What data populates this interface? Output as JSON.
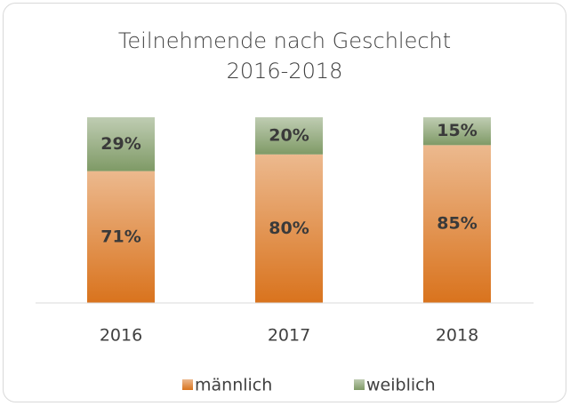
{
  "chart_data": {
    "type": "stacked_bar",
    "title": [
      "Teilnehmende nach Geschlecht",
      "2016-2018"
    ],
    "categories": [
      "2016",
      "2017",
      "2018"
    ],
    "series": [
      {
        "name": "männlich",
        "color": "#d9731d",
        "values": [
          71,
          80,
          85
        ],
        "value_labels": [
          "71%",
          "80%",
          "85%"
        ]
      },
      {
        "name": "weiblich",
        "color": "#7f9a66",
        "values": [
          29,
          20,
          15
        ],
        "value_labels": [
          "29%",
          "20%",
          "15%"
        ]
      }
    ],
    "ylim": [
      0,
      100
    ]
  }
}
